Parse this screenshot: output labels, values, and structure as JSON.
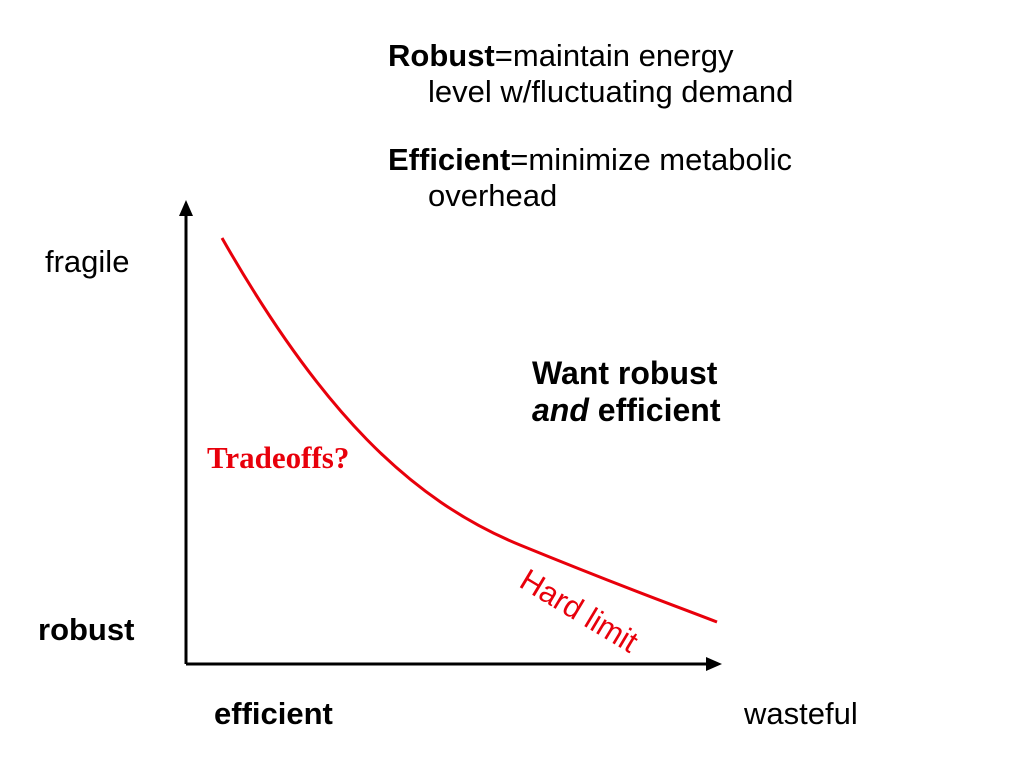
{
  "colors": {
    "curve": "#e8000b",
    "text": "#000000",
    "axis": "#000000"
  },
  "definitions": {
    "robust": {
      "term": "Robust",
      "text_line1": "=maintain energy",
      "text_line2": "level w/fluctuating demand"
    },
    "efficient": {
      "term": "Efficient",
      "text_line1": "=minimize metabolic",
      "text_line2": "overhead"
    }
  },
  "callout": {
    "line1": "Want robust",
    "line2_em": "and",
    "line2_rest": " efficient"
  },
  "axes": {
    "y_top": "fragile",
    "y_bottom": "robust",
    "x_left": "efficient",
    "x_right": "wasteful"
  },
  "curve": {
    "question_label": "Tradeoffs?",
    "limit_label": "Hard limit"
  }
}
